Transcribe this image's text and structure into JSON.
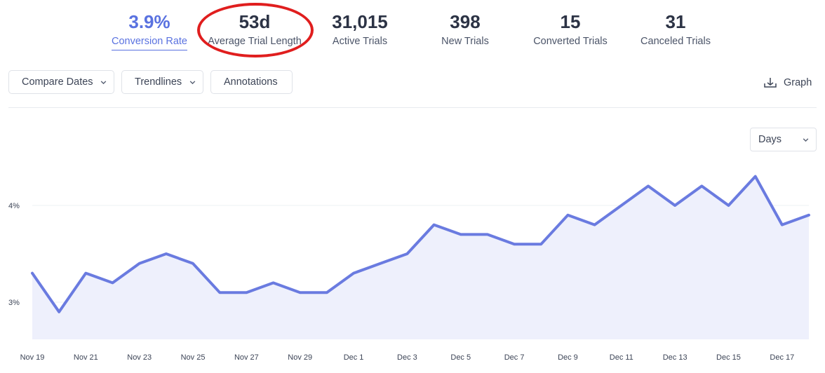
{
  "metrics": [
    {
      "value": "3.9%",
      "label": "Conversion Rate",
      "active": true
    },
    {
      "value": "53d",
      "label": "Average Trial Length",
      "active": false
    },
    {
      "value": "31,015",
      "label": "Active Trials",
      "active": false
    },
    {
      "value": "398",
      "label": "New Trials",
      "active": false
    },
    {
      "value": "15",
      "label": "Converted Trials",
      "active": false
    },
    {
      "value": "31",
      "label": "Canceled Trials",
      "active": false
    }
  ],
  "toolbar": {
    "compare_dates": "Compare Dates",
    "trendlines": "Trendlines",
    "annotations": "Annotations",
    "graph": "Graph"
  },
  "granularity": {
    "selected": "Days"
  },
  "colors": {
    "accent": "#5a72e0",
    "line": "#6a7be0",
    "area": "#eef0fc",
    "highlight": "#e01e1e"
  },
  "icons": {
    "graph": "download-icon",
    "dropdown": "chevron-down-icon"
  },
  "chart_data": {
    "type": "area",
    "x": [
      "Nov 19",
      "Nov 20",
      "Nov 21",
      "Nov 22",
      "Nov 23",
      "Nov 24",
      "Nov 25",
      "Nov 26",
      "Nov 27",
      "Nov 28",
      "Nov 29",
      "Nov 30",
      "Dec 1",
      "Dec 2",
      "Dec 3",
      "Dec 4",
      "Dec 5",
      "Dec 6",
      "Dec 7",
      "Dec 8",
      "Dec 9",
      "Dec 10",
      "Dec 11",
      "Dec 12",
      "Dec 13",
      "Dec 14",
      "Dec 15",
      "Dec 16",
      "Dec 17",
      "Dec 18"
    ],
    "x_tick_labels": [
      "Nov 19",
      "Nov 21",
      "Nov 23",
      "Nov 25",
      "Nov 27",
      "Nov 29",
      "Dec 1",
      "Dec 3",
      "Dec 5",
      "Dec 7",
      "Dec 9",
      "Dec 11",
      "Dec 13",
      "Dec 15",
      "Dec 17"
    ],
    "values": [
      3.3,
      2.9,
      3.3,
      3.2,
      3.4,
      3.5,
      3.4,
      3.1,
      3.1,
      3.2,
      3.1,
      3.1,
      3.3,
      3.4,
      3.5,
      3.8,
      3.7,
      3.7,
      3.6,
      3.6,
      3.9,
      3.8,
      4.0,
      4.2,
      4.0,
      4.2,
      4.0,
      4.3,
      3.8,
      3.9
    ],
    "y_ticks": [
      3,
      4
    ],
    "y_tick_labels": [
      "3%",
      "4%"
    ],
    "ylim": [
      2.6,
      4.5
    ],
    "grid": true
  }
}
